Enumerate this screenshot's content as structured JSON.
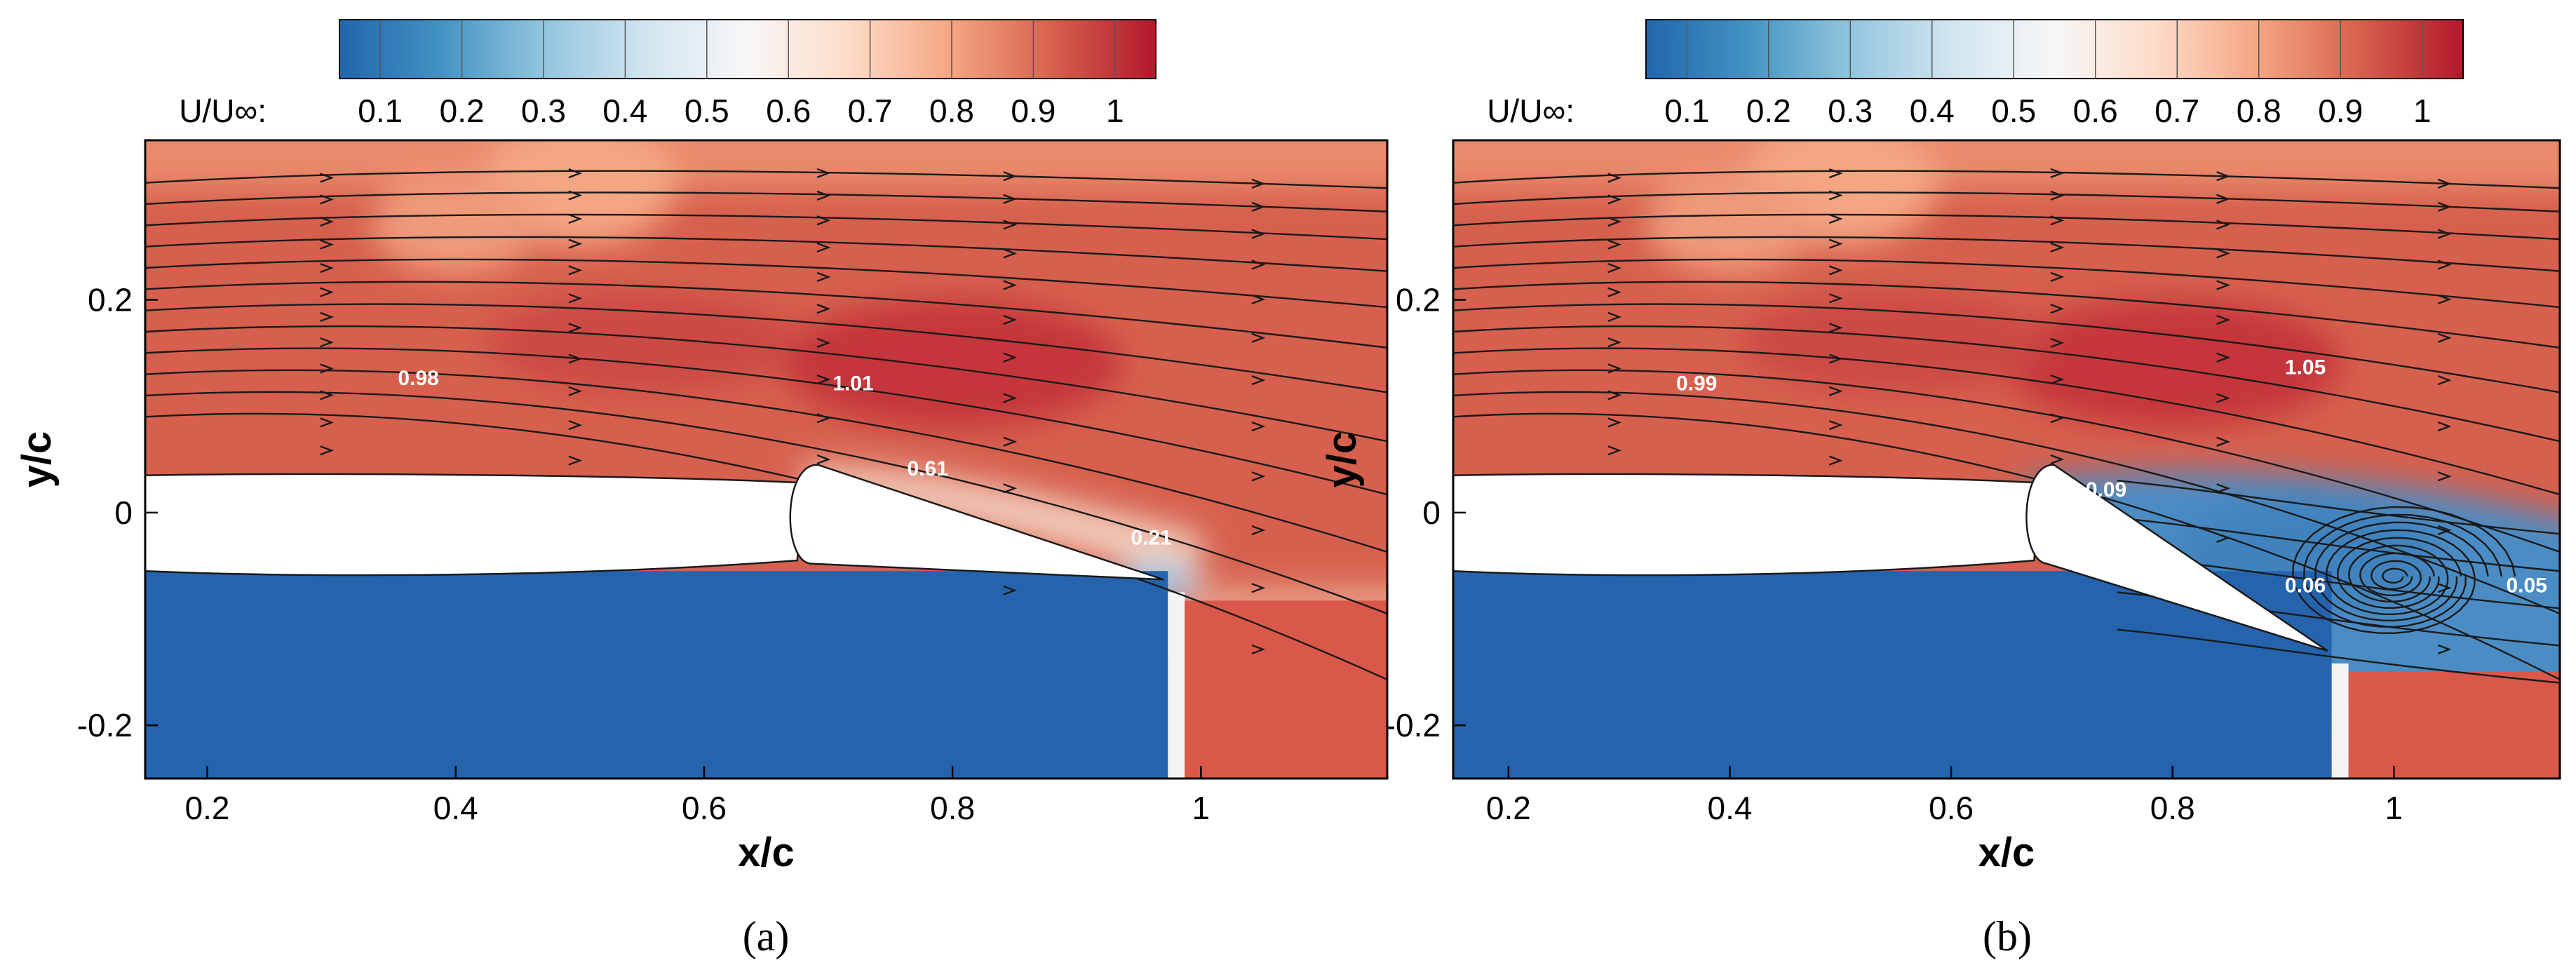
{
  "colors": {
    "colormap": [
      "#2166ac",
      "#4393c3",
      "#92c5de",
      "#d1e5f0",
      "#f7f7f7",
      "#fddbc7",
      "#f4a582",
      "#d6604d",
      "#b2182b"
    ],
    "fluid_blue": "#2563ad",
    "flow_red": "#d9584a",
    "streamline": "#1a1a1a"
  },
  "chart_data": [
    {
      "type": "heatmap",
      "panel": "a",
      "panel_label": "(a)",
      "xlabel": "x/c",
      "ylabel": "y/c",
      "xlim": [
        0.15,
        1.15
      ],
      "ylim": [
        -0.25,
        0.35
      ],
      "xticks": [
        0.2,
        0.4,
        0.6,
        0.8,
        1.0
      ],
      "xtick_labels": [
        "0.2",
        "0.4",
        "0.6",
        "0.8",
        "1"
      ],
      "yticks": [
        -0.2,
        0.0,
        0.2
      ],
      "ytick_labels": [
        "-0.2",
        "0",
        "0.2"
      ],
      "colorbar": {
        "label": "U/U∞:",
        "range": [
          0.05,
          1.05
        ],
        "ticks": [
          0.1,
          0.2,
          0.3,
          0.4,
          0.5,
          0.6,
          0.7,
          0.8,
          0.9,
          1.0
        ],
        "tick_labels": [
          "0.1",
          "0.2",
          "0.3",
          "0.4",
          "0.5",
          "0.6",
          "0.7",
          "0.8",
          "0.9",
          "1"
        ]
      },
      "flap_trailing_edge": [
        0.97,
        -0.063
      ],
      "vortex": null,
      "annotations": [
        {
          "text": "0.98",
          "x": 0.37,
          "y": 0.12
        },
        {
          "text": "1.01",
          "x": 0.72,
          "y": 0.115
        },
        {
          "text": "0.61",
          "x": 0.78,
          "y": 0.035
        },
        {
          "text": "0.21",
          "x": 0.96,
          "y": -0.03
        }
      ]
    },
    {
      "type": "heatmap",
      "panel": "b",
      "panel_label": "(b)",
      "xlabel": "x/c",
      "ylabel": "y/c",
      "xlim": [
        0.15,
        1.15
      ],
      "ylim": [
        -0.25,
        0.35
      ],
      "xticks": [
        0.2,
        0.4,
        0.6,
        0.8,
        1.0
      ],
      "xtick_labels": [
        "0.2",
        "0.4",
        "0.6",
        "0.8",
        "1"
      ],
      "yticks": [
        -0.2,
        0.0,
        0.2
      ],
      "ytick_labels": [
        "-0.2",
        "0",
        "0.2"
      ],
      "colorbar": {
        "label": "U/U∞:",
        "range": [
          0.05,
          1.05
        ],
        "ticks": [
          0.1,
          0.2,
          0.3,
          0.4,
          0.5,
          0.6,
          0.7,
          0.8,
          0.9,
          1.0
        ],
        "tick_labels": [
          "0.1",
          "0.2",
          "0.3",
          "0.4",
          "0.5",
          "0.6",
          "0.7",
          "0.8",
          "0.9",
          "1"
        ]
      },
      "flap_trailing_edge": [
        0.94,
        -0.13
      ],
      "vortex": [
        1.0,
        -0.06
      ],
      "annotations": [
        {
          "text": "0.99",
          "x": 0.37,
          "y": 0.115
        },
        {
          "text": "1.05",
          "x": 0.92,
          "y": 0.13
        },
        {
          "text": "0.09",
          "x": 0.74,
          "y": 0.015
        },
        {
          "text": "0.06",
          "x": 0.92,
          "y": -0.075
        },
        {
          "text": "0.05",
          "x": 1.12,
          "y": -0.075
        }
      ]
    }
  ]
}
